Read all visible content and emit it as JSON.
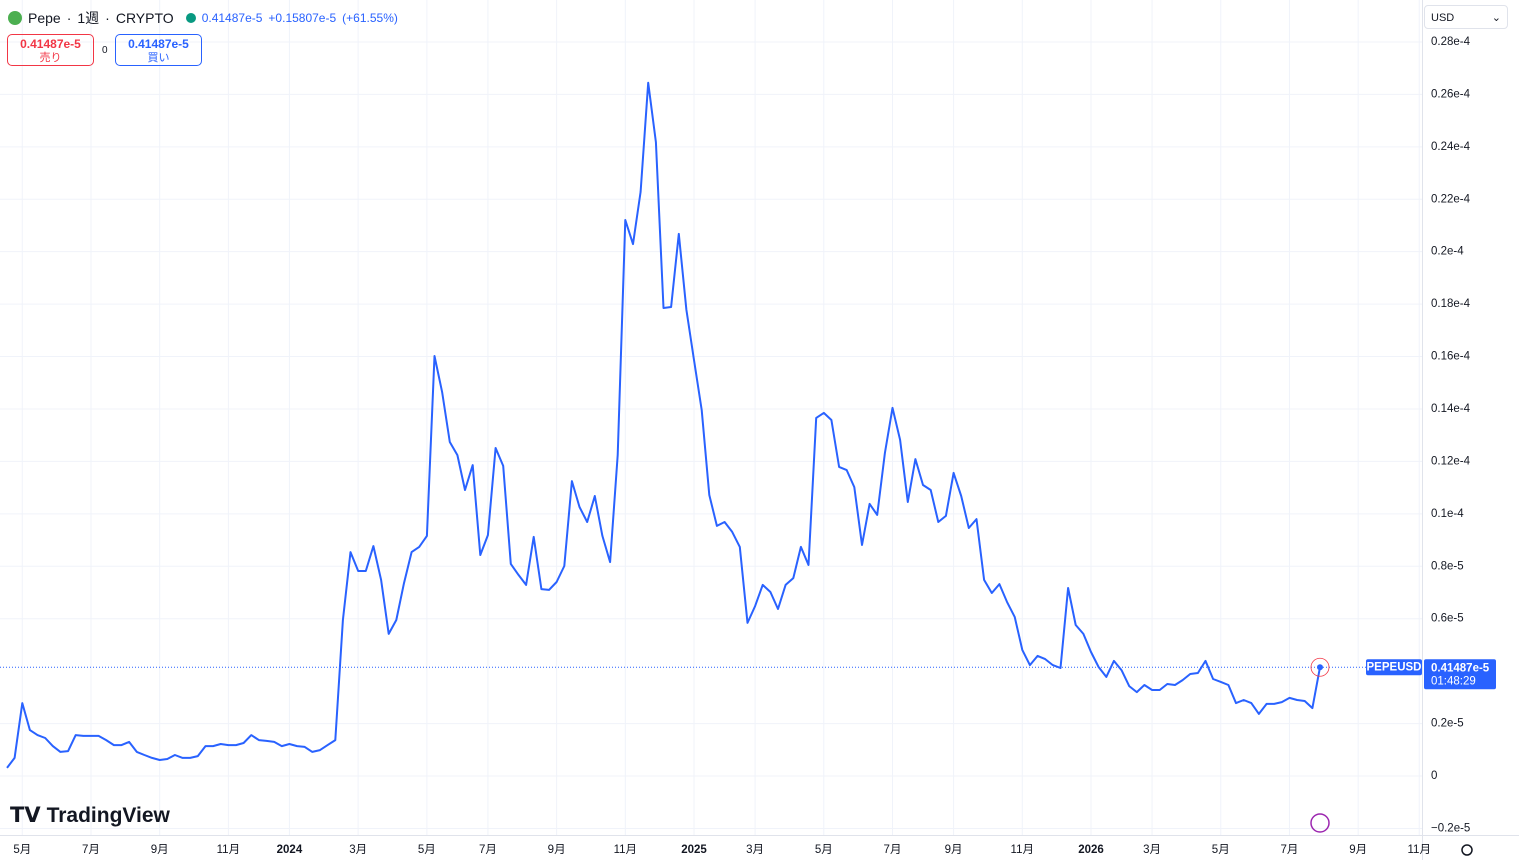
{
  "chart_data": {
    "type": "line",
    "title": "Pepe",
    "interval": "1週",
    "exchange": "CRYPTO",
    "last": "0.41487e-5",
    "change": "+0.15807e-5",
    "change_pct": "(+61.55%)",
    "sell_price": "0.41487e-5",
    "sell_label": "売り",
    "spread": "0",
    "buy_price": "0.41487e-5",
    "buy_label": "買い",
    "currency": "USD",
    "brand": "TradingView",
    "price_label": {
      "value": "0.41487e-5",
      "countdown": "01:48:29"
    },
    "categories": [
      null,
      null,
      "5月",
      null,
      null,
      null,
      null,
      null,
      null,
      null,
      null,
      "7月",
      null,
      null,
      null,
      null,
      null,
      null,
      null,
      null,
      "9月",
      null,
      null,
      null,
      null,
      null,
      null,
      null,
      null,
      "11月",
      null,
      null,
      null,
      null,
      null,
      null,
      null,
      "2024",
      null,
      null,
      null,
      null,
      null,
      null,
      null,
      null,
      "3月",
      null,
      null,
      null,
      null,
      null,
      null,
      null,
      null,
      "5月",
      null,
      null,
      null,
      null,
      null,
      null,
      null,
      "7月",
      null,
      null,
      null,
      null,
      null,
      null,
      null,
      null,
      "9月",
      null,
      null,
      null,
      null,
      null,
      null,
      null,
      null,
      "11月",
      null,
      null,
      null,
      null,
      null,
      null,
      null,
      null,
      "2025",
      null,
      null,
      null,
      null,
      null,
      null,
      null,
      "3月",
      null,
      null,
      null,
      null,
      null,
      null,
      null,
      null,
      "5月",
      null,
      null,
      null,
      null,
      null,
      null,
      null,
      null,
      "7月",
      null,
      null,
      null,
      null,
      null,
      null,
      null,
      "9月",
      null,
      null,
      null,
      null,
      null,
      null,
      null,
      null,
      "11月",
      null,
      null,
      null,
      null,
      null,
      null,
      null,
      null,
      "2026",
      null,
      null,
      null,
      null,
      null,
      null,
      null,
      "3月",
      null,
      null,
      null,
      null,
      null,
      null,
      null,
      null,
      "5月",
      null,
      null,
      null,
      null,
      null,
      null,
      null,
      null,
      "7月",
      null,
      null,
      null,
      null,
      null,
      null,
      null,
      null,
      "9月",
      null,
      null,
      null,
      null,
      null,
      null,
      null,
      "11月",
      null,
      null
    ],
    "series": [
      {
        "name": "PEPEUSD",
        "color": "#2962ff",
        "values": [
          3.1e-07,
          6.9e-07,
          2.78e-06,
          1.75e-06,
          1.56e-06,
          1.45e-06,
          1.14e-06,
          9.2e-07,
          9.5e-07,
          1.56e-06,
          1.53e-06,
          1.53e-06,
          1.53e-06,
          1.37e-06,
          1.18e-06,
          1.18e-06,
          1.3e-06,
          9.2e-07,
          8e-07,
          6.9e-07,
          6.1e-07,
          6.5e-07,
          8e-07,
          6.9e-07,
          6.9e-07,
          7.6e-07,
          1.14e-06,
          1.14e-06,
          1.22e-06,
          1.18e-06,
          1.18e-06,
          1.26e-06,
          1.56e-06,
          1.37e-06,
          1.34e-06,
          1.3e-06,
          1.14e-06,
          1.22e-06,
          1.14e-06,
          1.11e-06,
          9.2e-07,
          9.9e-07,
          1.18e-06,
          1.37e-06,
          5.95e-06,
          8.54e-06,
          7.82e-06,
          7.82e-06,
          8.77e-06,
          7.48e-06,
          5.42e-06,
          5.95e-06,
          7.36e-06,
          8.54e-06,
          8.74e-06,
          9.16e-06,
          1.602e-05,
          1.465e-05,
          1.274e-05,
          1.224e-05,
          1.091e-05,
          1.186e-05,
          8.43e-06,
          9.19e-06,
          1.251e-05,
          1.183e-05,
          8.09e-06,
          7.67e-06,
          7.29e-06,
          9.12e-06,
          7.13e-06,
          7.1e-06,
          7.4e-06,
          8.01e-06,
          1.125e-05,
          1.026e-05,
          9.69e-06,
          1.068e-05,
          9.16e-06,
          8.16e-06,
          1.224e-05,
          2.121e-05,
          2.029e-05,
          2.228e-05,
          2.644e-05,
          2.418e-05,
          1.785e-05,
          1.789e-05,
          2.068e-05,
          1.778e-05,
          1.587e-05,
          1.396e-05,
          1.072e-05,
          9.54e-06,
          9.69e-06,
          9.31e-06,
          8.74e-06,
          5.84e-06,
          6.48e-06,
          7.29e-06,
          7.02e-06,
          6.37e-06,
          7.29e-06,
          7.55e-06,
          8.74e-06,
          8.05e-06,
          1.366e-05,
          1.385e-05,
          1.358e-05,
          1.179e-05,
          1.167e-05,
          1.102e-05,
          8.81e-06,
          1.038e-05,
          9.96e-06,
          1.232e-05,
          1.404e-05,
          1.282e-05,
          1.045e-05,
          1.209e-05,
          1.11e-05,
          1.091e-05,
          9.69e-06,
          9.92e-06,
          1.156e-05,
          1.068e-05,
          9.46e-06,
          9.8e-06,
          7.48e-06,
          6.98e-06,
          7.32e-06,
          6.64e-06,
          6.07e-06,
          4.81e-06,
          4.23e-06,
          4.58e-06,
          4.46e-06,
          4.23e-06,
          4.12e-06,
          7.17e-06,
          5.76e-06,
          5.42e-06,
          4.73e-06,
          4.16e-06,
          3.78e-06,
          4.39e-06,
          4.04e-06,
          3.43e-06,
          3.2e-06,
          3.47e-06,
          3.28e-06,
          3.28e-06,
          3.51e-06,
          3.47e-06,
          3.66e-06,
          3.89e-06,
          3.93e-06,
          4.39e-06,
          3.7e-06,
          3.59e-06,
          3.47e-06,
          2.78e-06,
          2.9e-06,
          2.78e-06,
          2.37e-06,
          2.75e-06,
          2.75e-06,
          2.82e-06,
          2.98e-06,
          2.9e-06,
          2.86e-06,
          2.59e-06,
          4.1487e-06,
          null,
          null,
          null,
          null,
          null,
          null,
          null,
          null,
          null,
          null,
          null,
          null,
          null,
          null,
          null
        ]
      }
    ],
    "ylim": [
      -2.25e-06,
      2.96e-05
    ],
    "yticks": [
      {
        "value": -2e-06,
        "label": "−0.2e-5"
      },
      0,
      {
        "value": 2e-06,
        "label": "0.2e-5"
      },
      {
        "value": 6e-06,
        "label": "0.6e-5"
      },
      {
        "value": 8e-06,
        "label": "0.8e-5"
      },
      {
        "value": 1e-05,
        "label": "0.1e-4"
      },
      {
        "value": 1.2e-05,
        "label": "0.12e-4"
      },
      {
        "value": 1.4e-05,
        "label": "0.14e-4"
      },
      {
        "value": 1.6e-05,
        "label": "0.16e-4"
      },
      {
        "value": 1.8e-05,
        "label": "0.18e-4"
      },
      {
        "value": 2e-05,
        "label": "0.2e-4"
      },
      {
        "value": 2.2e-05,
        "label": "0.22e-4"
      },
      {
        "value": 2.4e-05,
        "label": "0.24e-4"
      },
      {
        "value": 2.6e-05,
        "label": "0.26e-4"
      },
      {
        "value": 2.8e-05,
        "label": "0.28e-4"
      }
    ],
    "grid": true
  }
}
